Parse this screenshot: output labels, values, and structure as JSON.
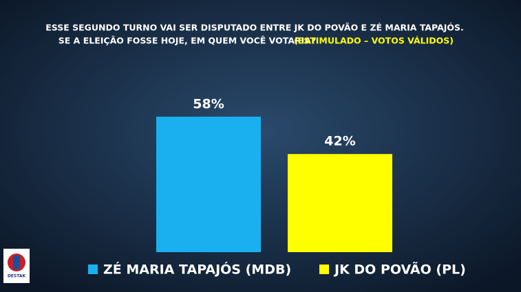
{
  "chart_data": {
    "type": "bar",
    "title": [
      "ESSE SEGUNDO TURNO VAI SER DISPUTADO ENTRE JK DO POVÃO E ZÉ MARIA TAPAJÓS.",
      "SE A ELEIÇÃO FOSSE HOJE, EM QUEM VOCÊ VOTARIA?"
    ],
    "subtitle": "(ESTIMULADO – VOTOS VÁLIDOS)",
    "series": [
      {
        "name": "ZÉ MARIA TAPAJÓS (MDB)",
        "color": "#1ab0f0",
        "values": [
          58
        ],
        "value_labels": [
          "58%"
        ]
      },
      {
        "name": "JK DO POVÃO (PL)",
        "color": "#ffff00",
        "values": [
          42
        ],
        "value_labels": [
          "42%"
        ]
      }
    ],
    "logo_text": "DESTAK"
  }
}
